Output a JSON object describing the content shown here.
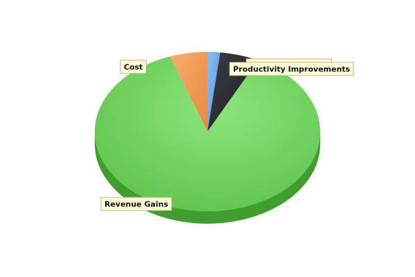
{
  "chart_data": {
    "type": "pie",
    "style": "3d",
    "legend": "none",
    "slices": [
      {
        "label": "Hard Cost Savings",
        "value": 1.8,
        "color": "#6aa6e8"
      },
      {
        "label": "Productivity Improvements",
        "value": 5.6,
        "color": "#2f2f35"
      },
      {
        "label": "Revenue Gains",
        "value": 87.2,
        "color": "#6fd35c"
      },
      {
        "label": "Cost",
        "value": 5.4,
        "color": "#f0964f"
      }
    ]
  }
}
